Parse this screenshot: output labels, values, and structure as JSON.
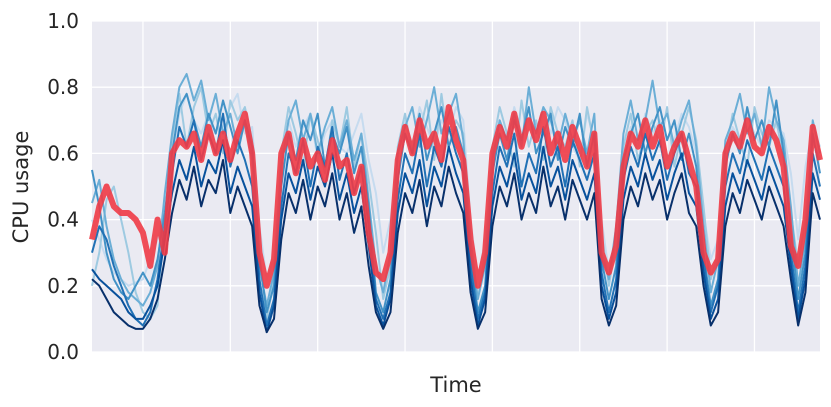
{
  "chart_data": {
    "type": "line",
    "title": "",
    "xlabel": "Time",
    "ylabel": "CPU usage",
    "ylim": [
      0,
      1.0
    ],
    "yticks": [
      "0.0",
      "0.2",
      "0.4",
      "0.6",
      "0.8",
      "1.0"
    ],
    "x_gridlines": [
      7,
      19,
      31,
      43,
      55,
      67,
      79,
      91
    ],
    "grid": true,
    "background_color": "#eaeaf2",
    "mean_color": "#f03b46",
    "x": [
      0,
      1,
      2,
      3,
      4,
      5,
      6,
      7,
      8,
      9,
      10,
      11,
      12,
      13,
      14,
      15,
      16,
      17,
      18,
      19,
      20,
      21,
      22,
      23,
      24,
      25,
      26,
      27,
      28,
      29,
      30,
      31,
      32,
      33,
      34,
      35,
      36,
      37,
      38,
      39,
      40,
      41,
      42,
      43,
      44,
      45,
      46,
      47,
      48,
      49,
      50,
      51,
      52,
      53,
      54,
      55,
      56,
      57,
      58,
      59,
      60,
      61,
      62,
      63,
      64,
      65,
      66,
      67,
      68,
      69,
      70,
      71,
      72,
      73,
      74,
      75,
      76,
      77,
      78,
      79,
      80,
      81,
      82,
      83,
      84,
      85,
      86,
      87,
      88,
      89,
      90,
      91,
      92,
      93,
      94,
      95,
      96,
      97,
      98,
      99,
      100
    ],
    "series": [
      {
        "color": "#c6dbef",
        "values": [
          0.4,
          0.34,
          0.28,
          0.24,
          0.22,
          0.2,
          0.21,
          0.22,
          0.28,
          0.34,
          0.45,
          0.58,
          0.72,
          0.78,
          0.7,
          0.66,
          0.72,
          0.62,
          0.68,
          0.74,
          0.78,
          0.66,
          0.68,
          0.38,
          0.22,
          0.28,
          0.55,
          0.7,
          0.62,
          0.68,
          0.72,
          0.58,
          0.66,
          0.7,
          0.62,
          0.6,
          0.66,
          0.72,
          0.58,
          0.48,
          0.3,
          0.4,
          0.58,
          0.7,
          0.62,
          0.74,
          0.68,
          0.62,
          0.7,
          0.66,
          0.74,
          0.7,
          0.4,
          0.22,
          0.34,
          0.56,
          0.7,
          0.62,
          0.74,
          0.66,
          0.7,
          0.64,
          0.72,
          0.66,
          0.74,
          0.7,
          0.62,
          0.58,
          0.72,
          0.64,
          0.4,
          0.24,
          0.32,
          0.56,
          0.68,
          0.62,
          0.72,
          0.66,
          0.7,
          0.58,
          0.64,
          0.72,
          0.68,
          0.6,
          0.42,
          0.28,
          0.34,
          0.58,
          0.68,
          0.64,
          0.72,
          0.66,
          0.62,
          0.7,
          0.68,
          0.66,
          0.54,
          0.34,
          0.56,
          0.68,
          0.62
        ]
      },
      {
        "color": "#9ecae1",
        "values": [
          0.2,
          0.3,
          0.46,
          0.5,
          0.4,
          0.3,
          0.18,
          0.12,
          0.1,
          0.14,
          0.4,
          0.64,
          0.78,
          0.62,
          0.74,
          0.8,
          0.66,
          0.72,
          0.6,
          0.76,
          0.7,
          0.74,
          0.64,
          0.3,
          0.1,
          0.22,
          0.6,
          0.74,
          0.66,
          0.56,
          0.72,
          0.64,
          0.54,
          0.7,
          0.62,
          0.74,
          0.56,
          0.66,
          0.52,
          0.36,
          0.16,
          0.26,
          0.62,
          0.72,
          0.6,
          0.66,
          0.76,
          0.58,
          0.78,
          0.62,
          0.7,
          0.66,
          0.28,
          0.16,
          0.3,
          0.62,
          0.74,
          0.66,
          0.56,
          0.76,
          0.62,
          0.7,
          0.58,
          0.74,
          0.66,
          0.62,
          0.7,
          0.56,
          0.74,
          0.62,
          0.36,
          0.2,
          0.34,
          0.62,
          0.72,
          0.58,
          0.66,
          0.7,
          0.62,
          0.74,
          0.56,
          0.66,
          0.74,
          0.64,
          0.44,
          0.22,
          0.3,
          0.6,
          0.72,
          0.64,
          0.56,
          0.74,
          0.66,
          0.62,
          0.7,
          0.58,
          0.42,
          0.26,
          0.4,
          0.64,
          0.58
        ]
      },
      {
        "color": "#6baed6",
        "values": [
          0.45,
          0.52,
          0.38,
          0.28,
          0.22,
          0.18,
          0.16,
          0.14,
          0.18,
          0.26,
          0.48,
          0.66,
          0.8,
          0.84,
          0.76,
          0.82,
          0.7,
          0.78,
          0.66,
          0.72,
          0.62,
          0.7,
          0.58,
          0.26,
          0.14,
          0.24,
          0.56,
          0.7,
          0.76,
          0.64,
          0.72,
          0.6,
          0.68,
          0.74,
          0.62,
          0.7,
          0.58,
          0.66,
          0.46,
          0.26,
          0.18,
          0.3,
          0.6,
          0.68,
          0.74,
          0.62,
          0.7,
          0.8,
          0.66,
          0.72,
          0.78,
          0.64,
          0.34,
          0.16,
          0.26,
          0.58,
          0.7,
          0.64,
          0.72,
          0.62,
          0.8,
          0.66,
          0.74,
          0.7,
          0.62,
          0.72,
          0.64,
          0.7,
          0.6,
          0.72,
          0.3,
          0.22,
          0.38,
          0.66,
          0.76,
          0.64,
          0.7,
          0.82,
          0.68,
          0.72,
          0.62,
          0.7,
          0.76,
          0.62,
          0.38,
          0.18,
          0.28,
          0.64,
          0.7,
          0.78,
          0.66,
          0.72,
          0.62,
          0.8,
          0.7,
          0.64,
          0.44,
          0.2,
          0.34,
          0.7,
          0.6
        ]
      },
      {
        "color": "#4292c6",
        "values": [
          0.55,
          0.44,
          0.3,
          0.22,
          0.18,
          0.16,
          0.2,
          0.24,
          0.2,
          0.28,
          0.42,
          0.6,
          0.74,
          0.78,
          0.7,
          0.62,
          0.72,
          0.66,
          0.76,
          0.68,
          0.6,
          0.7,
          0.62,
          0.28,
          0.12,
          0.2,
          0.5,
          0.66,
          0.58,
          0.7,
          0.64,
          0.72,
          0.56,
          0.66,
          0.6,
          0.68,
          0.54,
          0.62,
          0.44,
          0.18,
          0.12,
          0.22,
          0.52,
          0.66,
          0.6,
          0.72,
          0.58,
          0.66,
          0.74,
          0.62,
          0.68,
          0.6,
          0.3,
          0.12,
          0.2,
          0.54,
          0.66,
          0.58,
          0.7,
          0.64,
          0.74,
          0.6,
          0.66,
          0.72,
          0.58,
          0.68,
          0.62,
          0.72,
          0.56,
          0.66,
          0.28,
          0.16,
          0.26,
          0.58,
          0.66,
          0.72,
          0.6,
          0.68,
          0.74,
          0.64,
          0.7,
          0.58,
          0.66,
          0.56,
          0.3,
          0.14,
          0.22,
          0.56,
          0.66,
          0.6,
          0.74,
          0.64,
          0.7,
          0.62,
          0.76,
          0.6,
          0.36,
          0.16,
          0.3,
          0.66,
          0.54
        ]
      },
      {
        "color": "#2171b5",
        "values": [
          0.3,
          0.38,
          0.34,
          0.26,
          0.2,
          0.14,
          0.1,
          0.08,
          0.12,
          0.22,
          0.38,
          0.54,
          0.68,
          0.62,
          0.7,
          0.58,
          0.66,
          0.6,
          0.72,
          0.56,
          0.64,
          0.58,
          0.5,
          0.22,
          0.08,
          0.16,
          0.44,
          0.6,
          0.54,
          0.64,
          0.5,
          0.62,
          0.56,
          0.68,
          0.52,
          0.6,
          0.48,
          0.56,
          0.38,
          0.16,
          0.1,
          0.18,
          0.46,
          0.6,
          0.54,
          0.66,
          0.5,
          0.62,
          0.56,
          0.68,
          0.6,
          0.54,
          0.26,
          0.1,
          0.18,
          0.48,
          0.62,
          0.56,
          0.66,
          0.5,
          0.6,
          0.54,
          0.68,
          0.56,
          0.62,
          0.5,
          0.64,
          0.58,
          0.52,
          0.6,
          0.24,
          0.12,
          0.22,
          0.52,
          0.62,
          0.56,
          0.66,
          0.58,
          0.64,
          0.52,
          0.6,
          0.66,
          0.54,
          0.5,
          0.28,
          0.12,
          0.2,
          0.5,
          0.6,
          0.54,
          0.64,
          0.58,
          0.52,
          0.62,
          0.56,
          0.5,
          0.3,
          0.12,
          0.26,
          0.6,
          0.5
        ]
      },
      {
        "color": "#08519c",
        "values": [
          0.25,
          0.22,
          0.2,
          0.18,
          0.16,
          0.12,
          0.1,
          0.1,
          0.14,
          0.2,
          0.34,
          0.48,
          0.58,
          0.52,
          0.62,
          0.5,
          0.58,
          0.54,
          0.64,
          0.48,
          0.56,
          0.5,
          0.44,
          0.18,
          0.06,
          0.14,
          0.4,
          0.54,
          0.48,
          0.58,
          0.46,
          0.56,
          0.5,
          0.6,
          0.46,
          0.54,
          0.42,
          0.5,
          0.32,
          0.14,
          0.08,
          0.16,
          0.42,
          0.54,
          0.48,
          0.58,
          0.44,
          0.56,
          0.5,
          0.62,
          0.54,
          0.48,
          0.22,
          0.08,
          0.16,
          0.44,
          0.56,
          0.5,
          0.6,
          0.46,
          0.54,
          0.48,
          0.62,
          0.5,
          0.56,
          0.46,
          0.58,
          0.52,
          0.46,
          0.54,
          0.2,
          0.1,
          0.18,
          0.46,
          0.56,
          0.5,
          0.6,
          0.52,
          0.58,
          0.46,
          0.54,
          0.6,
          0.48,
          0.44,
          0.24,
          0.1,
          0.16,
          0.44,
          0.54,
          0.48,
          0.58,
          0.52,
          0.46,
          0.56,
          0.5,
          0.44,
          0.26,
          0.1,
          0.22,
          0.54,
          0.46
        ]
      },
      {
        "color": "#08306b",
        "values": [
          0.22,
          0.2,
          0.16,
          0.12,
          0.1,
          0.08,
          0.07,
          0.07,
          0.1,
          0.16,
          0.28,
          0.42,
          0.52,
          0.46,
          0.56,
          0.44,
          0.52,
          0.48,
          0.58,
          0.42,
          0.5,
          0.44,
          0.38,
          0.14,
          0.06,
          0.1,
          0.34,
          0.48,
          0.42,
          0.52,
          0.4,
          0.5,
          0.44,
          0.54,
          0.4,
          0.48,
          0.36,
          0.44,
          0.26,
          0.12,
          0.07,
          0.12,
          0.36,
          0.48,
          0.42,
          0.52,
          0.38,
          0.5,
          0.44,
          0.56,
          0.48,
          0.42,
          0.18,
          0.07,
          0.12,
          0.38,
          0.5,
          0.44,
          0.54,
          0.4,
          0.48,
          0.42,
          0.56,
          0.44,
          0.5,
          0.4,
          0.52,
          0.46,
          0.4,
          0.48,
          0.16,
          0.08,
          0.14,
          0.4,
          0.5,
          0.44,
          0.54,
          0.46,
          0.52,
          0.4,
          0.48,
          0.54,
          0.42,
          0.38,
          0.2,
          0.08,
          0.12,
          0.38,
          0.48,
          0.42,
          0.52,
          0.46,
          0.4,
          0.5,
          0.44,
          0.38,
          0.22,
          0.08,
          0.18,
          0.48,
          0.4
        ]
      },
      {
        "color": "#f03b46",
        "mean": true,
        "values": [
          0.34,
          0.44,
          0.5,
          0.44,
          0.42,
          0.42,
          0.4,
          0.36,
          0.26,
          0.4,
          0.3,
          0.6,
          0.64,
          0.62,
          0.66,
          0.58,
          0.68,
          0.6,
          0.66,
          0.58,
          0.66,
          0.72,
          0.6,
          0.3,
          0.2,
          0.28,
          0.6,
          0.66,
          0.54,
          0.64,
          0.56,
          0.6,
          0.52,
          0.64,
          0.56,
          0.58,
          0.48,
          0.56,
          0.36,
          0.24,
          0.22,
          0.3,
          0.58,
          0.68,
          0.6,
          0.7,
          0.62,
          0.66,
          0.58,
          0.74,
          0.64,
          0.58,
          0.34,
          0.2,
          0.3,
          0.6,
          0.68,
          0.62,
          0.72,
          0.62,
          0.7,
          0.64,
          0.72,
          0.6,
          0.66,
          0.58,
          0.68,
          0.62,
          0.56,
          0.66,
          0.3,
          0.24,
          0.32,
          0.56,
          0.66,
          0.62,
          0.7,
          0.62,
          0.68,
          0.56,
          0.62,
          0.66,
          0.58,
          0.5,
          0.3,
          0.24,
          0.28,
          0.6,
          0.66,
          0.62,
          0.7,
          0.62,
          0.6,
          0.68,
          0.64,
          0.56,
          0.32,
          0.26,
          0.4,
          0.68,
          0.58
        ]
      }
    ]
  }
}
